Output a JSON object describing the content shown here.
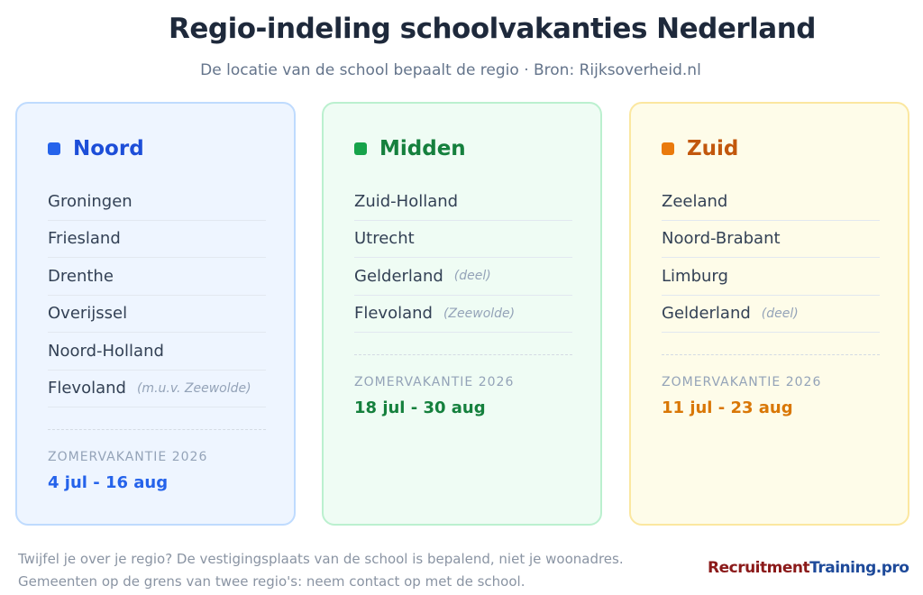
{
  "header": {
    "title": "Regio-indeling schoolvakanties Nederland",
    "subtitle": "De locatie van de school bepaalt de regio · Bron: Rijksoverheid.nl"
  },
  "regions": [
    {
      "name": "Noord",
      "provinces": [
        {
          "name": "Groningen"
        },
        {
          "name": "Friesland"
        },
        {
          "name": "Drenthe"
        },
        {
          "name": "Overijssel"
        },
        {
          "name": "Noord-Holland"
        },
        {
          "name": "Flevoland",
          "note": "(m.u.v. Zeewolde)"
        }
      ],
      "summer_label": "ZOMERVAKANTIE 2026",
      "summer_dates": "4 jul - 16 aug"
    },
    {
      "name": "Midden",
      "provinces": [
        {
          "name": "Zuid-Holland"
        },
        {
          "name": "Utrecht"
        },
        {
          "name": "Gelderland",
          "note": "(deel)"
        },
        {
          "name": "Flevoland",
          "note": "(Zeewolde)"
        }
      ],
      "summer_label": "ZOMERVAKANTIE 2026",
      "summer_dates": "18 jul - 30 aug"
    },
    {
      "name": "Zuid",
      "provinces": [
        {
          "name": "Zeeland"
        },
        {
          "name": "Noord-Brabant"
        },
        {
          "name": "Limburg"
        },
        {
          "name": "Gelderland",
          "note": "(deel)"
        }
      ],
      "summer_label": "ZOMERVAKANTIE 2026",
      "summer_dates": "11 jul - 23 aug"
    }
  ],
  "footer": {
    "lines": [
      "Twijfel je over je regio? De vestigingsplaats van de school is bepalend, niet je woonadres.",
      "Gemeenten op de grens van twee regio's: neem contact op met de school."
    ]
  },
  "logo": {
    "part1": "Recruitment",
    "part2": "Training.pro"
  }
}
